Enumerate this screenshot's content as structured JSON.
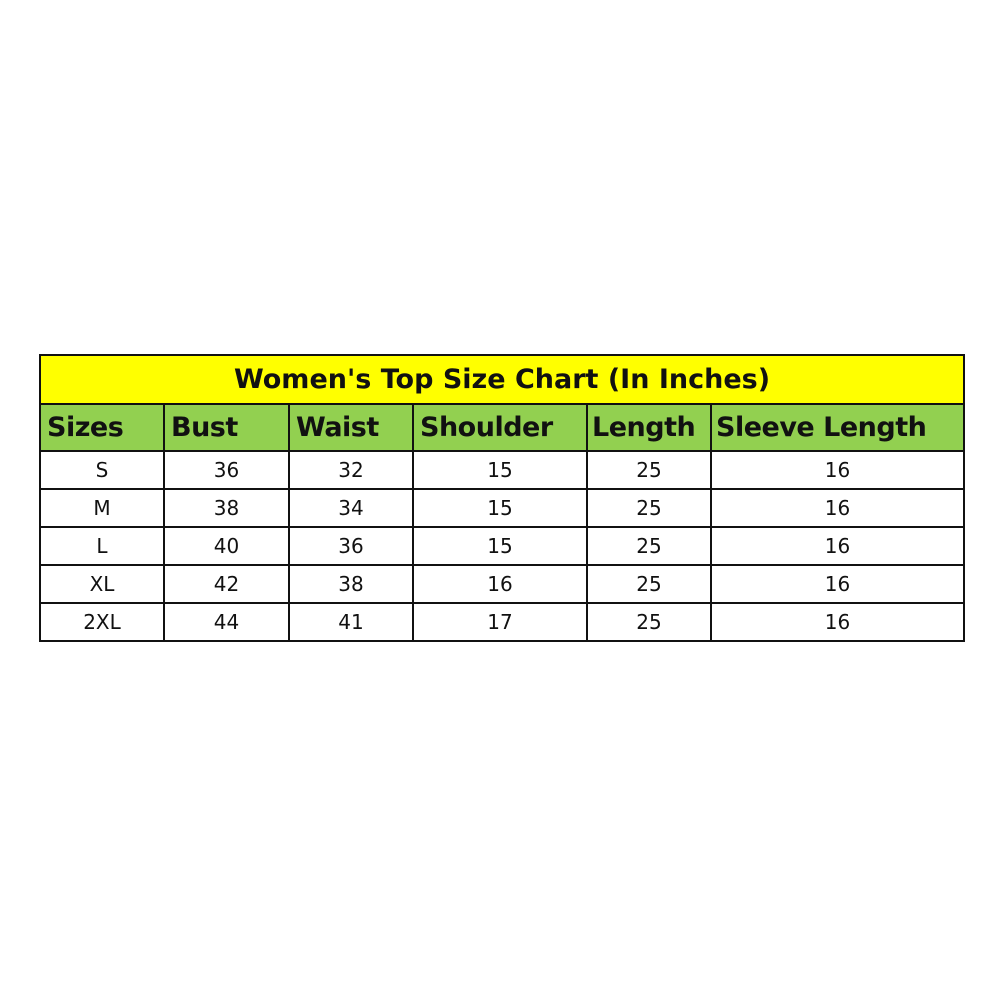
{
  "title": "Women's Top Size Chart (In Inches)",
  "colors": {
    "title_bg": "#ffff00",
    "header_bg": "#92d050"
  },
  "headers": [
    "Sizes",
    "Bust",
    "Waist",
    "Shoulder",
    "Length",
    "Sleeve Length"
  ],
  "rows": [
    [
      "S",
      "36",
      "32",
      "15",
      "25",
      "16"
    ],
    [
      "M",
      "38",
      "34",
      "15",
      "25",
      "16"
    ],
    [
      "L",
      "40",
      "36",
      "15",
      "25",
      "16"
    ],
    [
      "XL",
      "42",
      "38",
      "16",
      "25",
      "16"
    ],
    [
      "2XL",
      "44",
      "41",
      "17",
      "25",
      "16"
    ]
  ]
}
